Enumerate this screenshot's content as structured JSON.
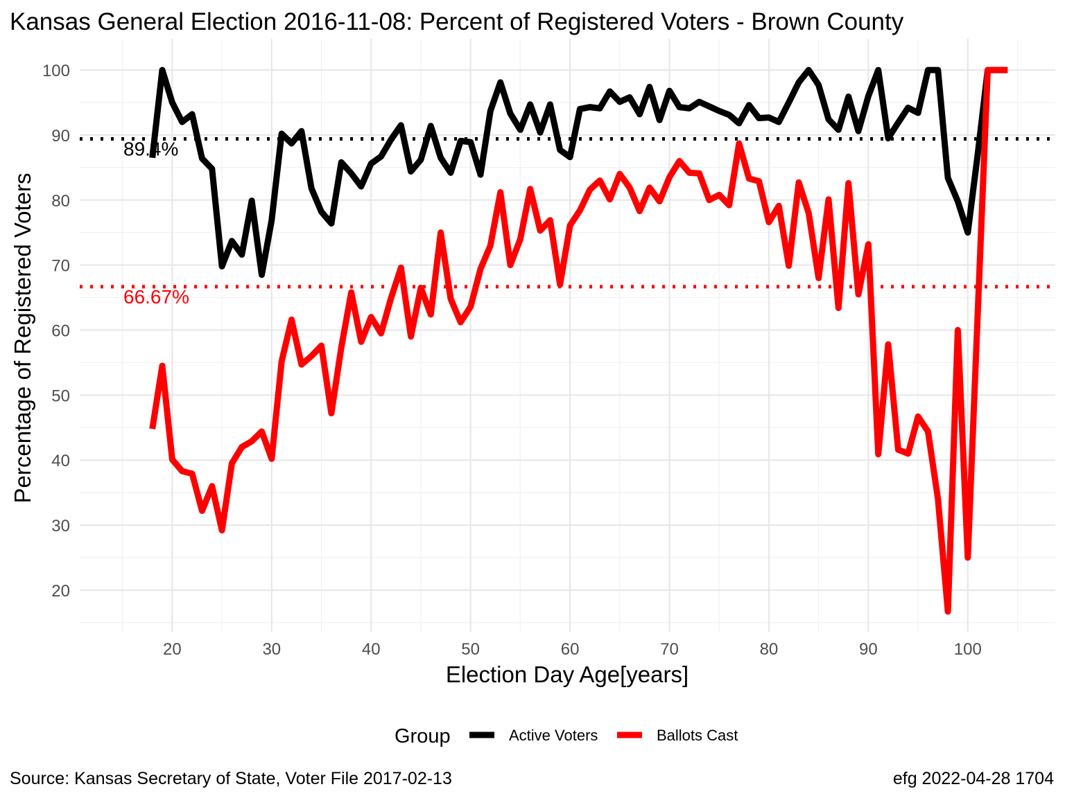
{
  "chart_data": {
    "type": "line",
    "title": "Kansas General Election 2016-11-08:  Percent of Registered Voters - Brown County",
    "xlabel": "Election Day Age[years]",
    "ylabel": "Percentage of Registered Voters",
    "xlim": [
      10.7,
      108.8
    ],
    "ylim": [
      13.6,
      104.8
    ],
    "x_ticks": [
      20,
      30,
      40,
      50,
      60,
      70,
      80,
      90,
      100
    ],
    "y_ticks": [
      20,
      30,
      40,
      50,
      60,
      70,
      80,
      90,
      100
    ],
    "grid": true,
    "legend": {
      "title": "Group",
      "position": "bottom",
      "entries": [
        {
          "label": "Active Voters",
          "color": "#000000"
        },
        {
          "label": "Ballots Cast",
          "color": "#ff0000"
        }
      ]
    },
    "reference_lines": [
      {
        "y": 89.4,
        "label": "89.4%",
        "color": "#000000",
        "style": "dotted"
      },
      {
        "y": 66.67,
        "label": "66.67%",
        "color": "#ff0000",
        "style": "dotted"
      }
    ],
    "series": [
      {
        "name": "Active Voters",
        "color": "#000000",
        "points": [
          [
            18,
            86.5
          ],
          [
            19,
            100
          ],
          [
            20,
            95
          ],
          [
            21,
            92
          ],
          [
            22,
            93.2
          ],
          [
            23,
            86.4
          ],
          [
            24,
            84.8
          ],
          [
            25,
            69.8
          ],
          [
            26,
            73.7
          ],
          [
            27,
            71.6
          ],
          [
            28,
            79.9
          ],
          [
            29,
            68.5
          ],
          [
            30,
            76.9
          ],
          [
            31,
            90.2
          ],
          [
            32,
            88.7
          ],
          [
            33,
            90.6
          ],
          [
            34,
            81.8
          ],
          [
            35,
            78.2
          ],
          [
            36,
            76.4
          ],
          [
            37,
            85.8
          ],
          [
            38,
            84.1
          ],
          [
            39,
            82.1
          ],
          [
            40,
            85.6
          ],
          [
            41,
            86.7
          ],
          [
            42,
            89.3
          ],
          [
            43,
            91.5
          ],
          [
            44,
            84.4
          ],
          [
            45,
            86.2
          ],
          [
            46,
            91.4
          ],
          [
            47,
            86.5
          ],
          [
            48,
            84.2
          ],
          [
            49,
            89.1
          ],
          [
            50,
            88.9
          ],
          [
            51,
            83.9
          ],
          [
            52,
            93.7
          ],
          [
            53,
            98.1
          ],
          [
            54,
            93.3
          ],
          [
            55,
            90.8
          ],
          [
            56,
            94.7
          ],
          [
            57,
            90.4
          ],
          [
            58,
            94.7
          ],
          [
            59,
            87.7
          ],
          [
            60,
            86.6
          ],
          [
            61,
            94
          ],
          [
            62,
            94.3
          ],
          [
            63,
            94.1
          ],
          [
            64,
            96.7
          ],
          [
            65,
            95.1
          ],
          [
            66,
            95.8
          ],
          [
            67,
            93.2
          ],
          [
            68,
            97.4
          ],
          [
            69,
            92.3
          ],
          [
            70,
            96.8
          ],
          [
            71,
            94.3
          ],
          [
            72,
            94.1
          ],
          [
            73,
            95.1
          ],
          [
            74,
            94.4
          ],
          [
            75,
            93.7
          ],
          [
            76,
            93.1
          ],
          [
            77,
            91.8
          ],
          [
            78,
            94.6
          ],
          [
            79,
            92.6
          ],
          [
            80,
            92.7
          ],
          [
            81,
            92
          ],
          [
            82,
            95
          ],
          [
            83,
            98.1
          ],
          [
            84,
            100
          ],
          [
            85,
            97.7
          ],
          [
            86,
            92.4
          ],
          [
            87,
            90.8
          ],
          [
            88,
            95.9
          ],
          [
            89,
            90.6
          ],
          [
            90,
            96
          ],
          [
            91,
            100
          ],
          [
            92,
            89.5
          ],
          [
            93,
            91.9
          ],
          [
            94,
            94.2
          ],
          [
            95,
            93.4
          ],
          [
            96,
            100
          ],
          [
            97,
            100
          ],
          [
            98,
            83.4
          ],
          [
            99,
            79.8
          ],
          [
            100,
            75
          ],
          [
            101,
            87
          ],
          [
            102,
            100
          ],
          [
            103,
            100
          ],
          [
            104,
            100
          ]
        ]
      },
      {
        "name": "Ballots Cast",
        "color": "#ff0000",
        "points": [
          [
            18,
            44.8
          ],
          [
            19,
            54.5
          ],
          [
            20,
            40.1
          ],
          [
            21,
            38.3
          ],
          [
            22,
            37.9
          ],
          [
            23,
            32.2
          ],
          [
            24,
            36
          ],
          [
            25,
            29.2
          ],
          [
            26,
            39.5
          ],
          [
            27,
            42
          ],
          [
            28,
            42.9
          ],
          [
            29,
            44.4
          ],
          [
            30,
            40.2
          ],
          [
            31,
            55.2
          ],
          [
            32,
            61.6
          ],
          [
            33,
            54.7
          ],
          [
            34,
            56
          ],
          [
            35,
            57.6
          ],
          [
            36,
            47.2
          ],
          [
            37,
            57.3
          ],
          [
            38,
            65.8
          ],
          [
            39,
            58.2
          ],
          [
            40,
            62
          ],
          [
            41,
            59.5
          ],
          [
            42,
            64.9
          ],
          [
            43,
            69.6
          ],
          [
            44,
            59
          ],
          [
            45,
            66.5
          ],
          [
            46,
            62.4
          ],
          [
            47,
            75
          ],
          [
            48,
            64.8
          ],
          [
            49,
            61.2
          ],
          [
            50,
            63.6
          ],
          [
            51,
            69.4
          ],
          [
            52,
            73
          ],
          [
            53,
            81.2
          ],
          [
            54,
            70
          ],
          [
            55,
            74
          ],
          [
            56,
            81.7
          ],
          [
            57,
            75.3
          ],
          [
            58,
            76.9
          ],
          [
            59,
            67
          ],
          [
            60,
            76.1
          ],
          [
            61,
            78.4
          ],
          [
            62,
            81.6
          ],
          [
            63,
            83
          ],
          [
            64,
            80.1
          ],
          [
            65,
            84
          ],
          [
            66,
            81.9
          ],
          [
            67,
            78.3
          ],
          [
            68,
            81.9
          ],
          [
            69,
            79.8
          ],
          [
            70,
            83.5
          ],
          [
            71,
            86
          ],
          [
            72,
            84.2
          ],
          [
            73,
            84.1
          ],
          [
            74,
            80
          ],
          [
            75,
            80.8
          ],
          [
            76,
            79.2
          ],
          [
            77,
            88.7
          ],
          [
            78,
            83.3
          ],
          [
            79,
            82.9
          ],
          [
            80,
            76.6
          ],
          [
            81,
            79.1
          ],
          [
            82,
            69.9
          ],
          [
            83,
            82.7
          ],
          [
            84,
            78
          ],
          [
            85,
            68
          ],
          [
            86,
            80.1
          ],
          [
            87,
            63.4
          ],
          [
            88,
            82.6
          ],
          [
            89,
            65.5
          ],
          [
            90,
            73.2
          ],
          [
            91,
            40.9
          ],
          [
            92,
            57.8
          ],
          [
            93,
            41.6
          ],
          [
            94,
            41
          ],
          [
            95,
            46.7
          ],
          [
            96,
            44.4
          ],
          [
            97,
            34
          ],
          [
            98,
            16.7
          ],
          [
            99,
            60
          ],
          [
            100,
            25
          ],
          [
            101,
            62.5
          ],
          [
            102,
            100
          ],
          [
            103,
            100
          ],
          [
            104,
            100
          ]
        ]
      }
    ]
  },
  "caption": {
    "source": "Source:  Kansas Secretary of State, Voter File  2017-02-13",
    "credit": "efg 2022-04-28 1704"
  }
}
